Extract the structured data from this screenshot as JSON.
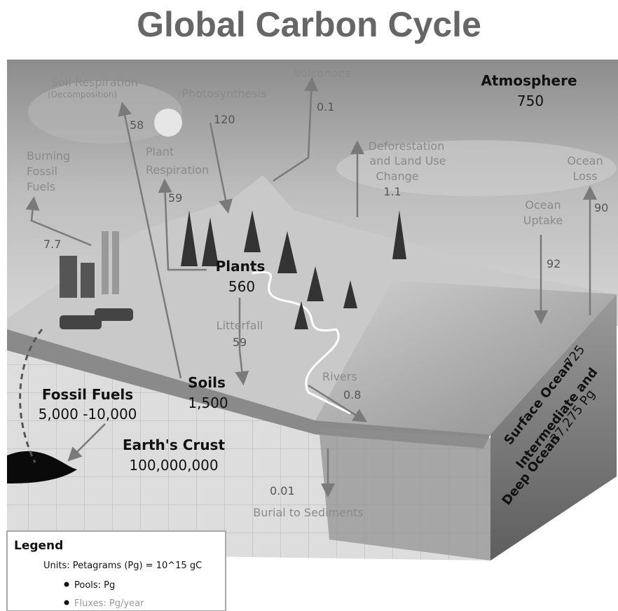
{
  "title": "Global Carbon Cycle",
  "pools": {
    "atmosphere": {
      "name": "Atmosphere",
      "value": "750"
    },
    "plants": {
      "name": "Plants",
      "value": "560"
    },
    "soils": {
      "name": "Soils",
      "value": "1,500"
    },
    "fossil_fuels": {
      "name": "Fossil Fuels",
      "value": "5,000 -10,000"
    },
    "earths_crust": {
      "name": "Earth's Crust",
      "value": "100,000,000"
    },
    "surface_ocean": {
      "name": "Surface Ocean",
      "value": "725"
    },
    "deep_ocean": {
      "name": [
        "Intermediate and",
        "Deep Ocean"
      ],
      "value": "37,275 Pg"
    }
  },
  "fluxes": {
    "soil_respiration": {
      "label": [
        "Soil Respiration",
        "(Decomposition)"
      ],
      "value": "58"
    },
    "photosynthesis": {
      "label": [
        "Photosynthesis"
      ],
      "value": "120"
    },
    "volcanoes": {
      "label": [
        "Volcanoes"
      ],
      "value": "0.1"
    },
    "burning_fossil_fuels": {
      "label": [
        "Burning",
        "Fossil",
        "Fuels"
      ],
      "value": "7.7"
    },
    "plant_respiration": {
      "label": [
        "Plant",
        "Respiration"
      ],
      "value": "59"
    },
    "deforestation": {
      "label": [
        "Deforestation",
        "and Land Use",
        "Change"
      ],
      "value": "1.1"
    },
    "ocean_loss": {
      "label": [
        "Ocean",
        "Loss"
      ],
      "value": "90"
    },
    "ocean_uptake": {
      "label": [
        "Ocean",
        "Uptake"
      ],
      "value": "92"
    },
    "litterfall": {
      "label": [
        "Litterfall"
      ],
      "value": "59"
    },
    "rivers": {
      "label": [
        "Rivers"
      ],
      "value": "0.8"
    },
    "burial": {
      "label": [
        "Burial to Sediments"
      ],
      "value": "0.01"
    }
  },
  "legend": {
    "title": "Legend",
    "units": "Units: Petagrams (Pg) = 10^15 gC",
    "items": [
      "Pools: Pg",
      "Fluxes: Pg/year"
    ]
  }
}
